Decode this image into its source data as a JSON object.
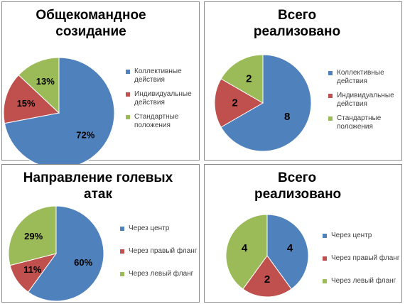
{
  "colors": {
    "blue": "#4f81bd",
    "red": "#c0504d",
    "green": "#9bbb59"
  },
  "chart_data": [
    {
      "type": "pie",
      "title": [
        "Общекомандное",
        "созидание"
      ],
      "categories": [
        "Коллективные\nдействия",
        "Индивидуальные\nдействия",
        "Стандартные\nположения"
      ],
      "values": [
        72,
        15,
        13
      ],
      "data_labels": [
        "72%",
        "15%",
        "13%"
      ],
      "legend_position": "right"
    },
    {
      "type": "pie",
      "title": [
        "Всего",
        "реализовано"
      ],
      "categories": [
        "Коллективные\nдействия",
        "Индивидуальные\nдействия",
        "Стандартные\nположения"
      ],
      "values": [
        8,
        2,
        2
      ],
      "data_labels": [
        "8",
        "2",
        "2"
      ],
      "legend_position": "right"
    },
    {
      "type": "pie",
      "title": [
        "Направление голевых",
        "атак"
      ],
      "categories": [
        "Через центр",
        "Через правый фланг",
        "Через левый фланг"
      ],
      "values": [
        60,
        11,
        29
      ],
      "data_labels": [
        "60%",
        "11%",
        "29%"
      ],
      "legend_position": "right"
    },
    {
      "type": "pie",
      "title": [
        "Всего",
        "реализовано"
      ],
      "categories": [
        "Через центр",
        "Через правый фланг",
        "Через левый фланг"
      ],
      "values": [
        4,
        2,
        4
      ],
      "data_labels": [
        "4",
        "2",
        "4"
      ],
      "legend_position": "right"
    }
  ]
}
